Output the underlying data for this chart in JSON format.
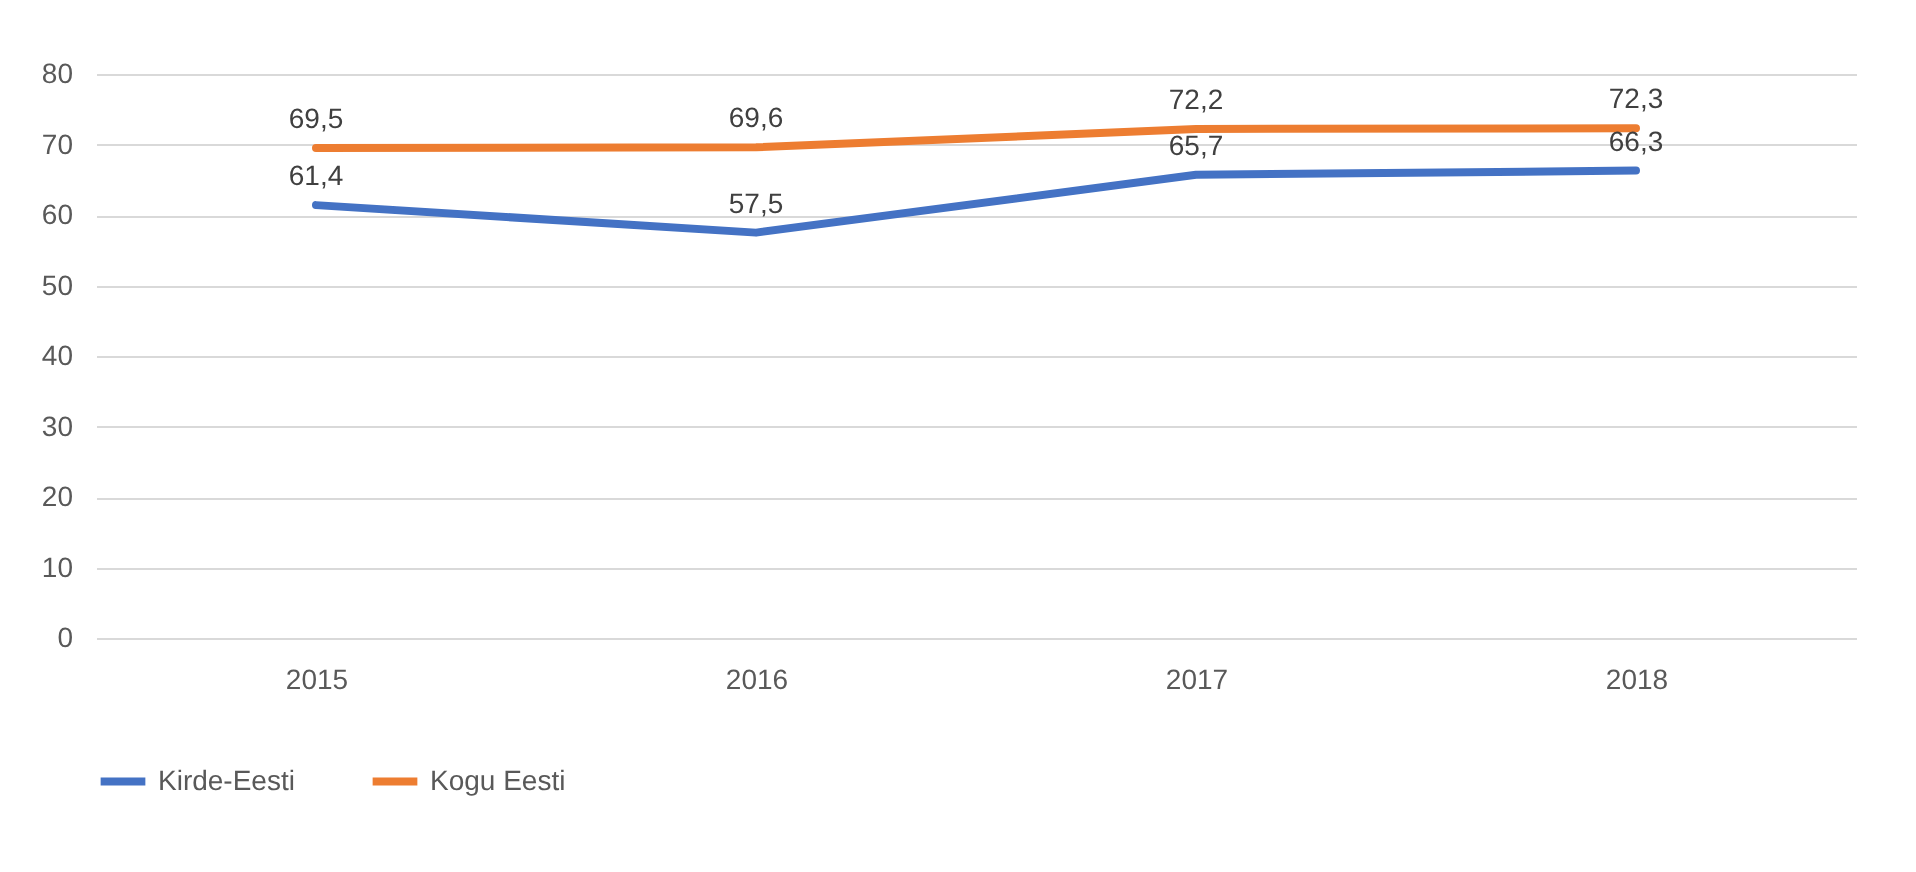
{
  "chart_data": {
    "type": "line",
    "categories": [
      "2015",
      "2016",
      "2017",
      "2018"
    ],
    "series": [
      {
        "name": "Kirde-Eesti",
        "color": "#4472c4",
        "values": [
          61.4,
          57.5,
          65.7,
          66.3
        ],
        "value_labels": [
          "61,4",
          "57,5",
          "65,7",
          "66,3"
        ]
      },
      {
        "name": "Kogu Eesti",
        "color": "#ed7d31",
        "values": [
          69.5,
          69.6,
          72.2,
          72.3
        ],
        "value_labels": [
          "69,5",
          "69,6",
          "72,2",
          "72,3"
        ]
      }
    ],
    "ylim": [
      0,
      80
    ],
    "yticks": [
      0,
      10,
      20,
      30,
      40,
      50,
      60,
      70,
      80
    ],
    "grid": "y",
    "legend": "bottom"
  }
}
